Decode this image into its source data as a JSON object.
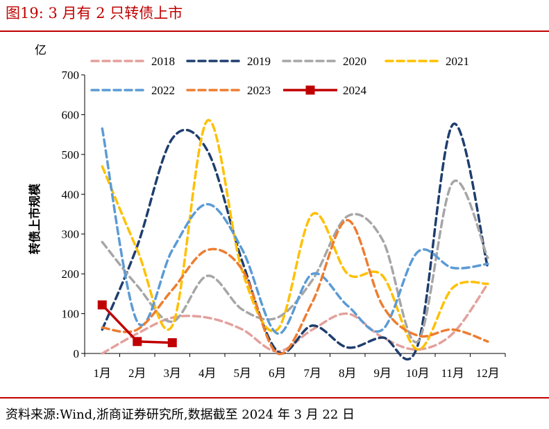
{
  "figure": {
    "title": "图19:   3 月有 2 只转债上市",
    "source": "资料来源:Wind,浙商证券研究所,数据截至 2024 年 3 月 22 日"
  },
  "chart_data": {
    "type": "line",
    "unit_label": "亿",
    "ylabel": "转债上市规模",
    "xlabel": "",
    "ylim": [
      0,
      700
    ],
    "yticks": [
      0,
      100,
      200,
      300,
      400,
      500,
      600,
      700
    ],
    "categories": [
      "1月",
      "2月",
      "3月",
      "4月",
      "5月",
      "6月",
      "7月",
      "8月",
      "9月",
      "10月",
      "11月",
      "12月"
    ],
    "legend_position": "top",
    "grid": false,
    "series": [
      {
        "name": "2018",
        "color": "#e3a09c",
        "style": "dashed",
        "values": [
          0,
          50,
          90,
          90,
          60,
          5,
          60,
          100,
          40,
          10,
          50,
          175
        ]
      },
      {
        "name": "2019",
        "color": "#1f3e6e",
        "style": "dashed",
        "values": [
          60,
          270,
          540,
          510,
          230,
          5,
          70,
          15,
          40,
          20,
          575,
          215
        ]
      },
      {
        "name": "2020",
        "color": "#a6a6a6",
        "style": "dashed",
        "values": [
          280,
          170,
          80,
          195,
          110,
          90,
          185,
          345,
          285,
          30,
          430,
          240
        ]
      },
      {
        "name": "2021",
        "color": "#ffc000",
        "style": "dashed",
        "values": [
          470,
          260,
          70,
          585,
          205,
          60,
          350,
          200,
          195,
          10,
          165,
          175
        ]
      },
      {
        "name": "2022",
        "color": "#5b9bd5",
        "style": "dashed",
        "values": [
          565,
          80,
          260,
          375,
          260,
          50,
          200,
          120,
          60,
          255,
          215,
          225
        ]
      },
      {
        "name": "2023",
        "color": "#ed7d31",
        "style": "dashed",
        "values": [
          65,
          60,
          160,
          260,
          210,
          0,
          130,
          335,
          120,
          45,
          60,
          30
        ]
      },
      {
        "name": "2024",
        "color": "#c00000",
        "style": "solid",
        "marker": "square",
        "values": [
          122,
          30,
          27,
          null,
          null,
          null,
          null,
          null,
          null,
          null,
          null,
          null
        ]
      }
    ]
  }
}
